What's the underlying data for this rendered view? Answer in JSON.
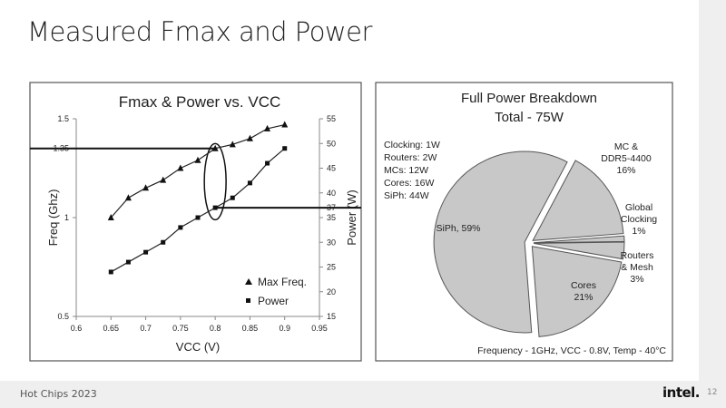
{
  "slide": {
    "title": "Measured Fmax and Power",
    "footer": "Hot Chips 2023",
    "logo": "intel.",
    "page": "12"
  },
  "chart_data": [
    {
      "type": "line",
      "title": "Fmax & Power vs. VCC",
      "xlabel": "VCC (V)",
      "ylabel": "Freq (Ghz)",
      "y2label": "Power (W)",
      "xlim": [
        0.6,
        0.95
      ],
      "ylim": [
        0.5,
        1.5
      ],
      "y2lim": [
        15,
        55
      ],
      "xticks": [
        "0.6",
        "0.65",
        "0.7",
        "0.75",
        "0.8",
        "0.85",
        "0.9",
        "0.95"
      ],
      "yticks": [
        "0.5",
        "1",
        "1.35",
        "1.5"
      ],
      "y2ticks": [
        "15",
        "20",
        "25",
        "30",
        "35",
        "37",
        "40",
        "45",
        "50",
        "55"
      ],
      "x": [
        0.65,
        0.675,
        0.7,
        0.725,
        0.75,
        0.775,
        0.8,
        0.825,
        0.85,
        0.875,
        0.9
      ],
      "series": [
        {
          "name": "Max Freq.",
          "axis": "left",
          "marker": "triangle",
          "values": [
            1.0,
            1.1,
            1.15,
            1.19,
            1.25,
            1.29,
            1.35,
            1.37,
            1.4,
            1.45,
            1.47
          ]
        },
        {
          "name": "Power",
          "axis": "right",
          "marker": "square",
          "values": [
            24,
            26,
            28,
            30,
            33,
            35,
            37,
            39,
            42,
            46,
            49
          ]
        }
      ],
      "annotations": {
        "freq_ref": 1.35,
        "power_ref": 37,
        "highlight_vcc": 0.8
      },
      "legend": "bottom-right",
      "grid": false
    },
    {
      "type": "pie",
      "title": "Full Power Breakdown",
      "subtitle": "Total - 75W",
      "slices": [
        {
          "label": "MC & DDR5-4400",
          "pct": "16%",
          "value": 16,
          "lines": [
            "MC &",
            "DDR5-4400",
            "16%"
          ]
        },
        {
          "label": "Global Clocking",
          "pct": "1%",
          "value": 1,
          "lines": [
            "Global",
            "Clocking",
            "1%"
          ]
        },
        {
          "label": "Routers & Mesh",
          "pct": "3%",
          "value": 3,
          "lines": [
            "Routers",
            "& Mesh",
            "3%"
          ]
        },
        {
          "label": "Cores",
          "pct": "21%",
          "value": 21,
          "lines": [
            "Cores",
            "21%"
          ]
        },
        {
          "label": "SiPh",
          "pct": "59%",
          "value": 59,
          "lines": [
            "SiPh, 59%"
          ]
        }
      ],
      "note_lines": [
        "Clocking: 1W",
        "Routers: 2W",
        "MCs: 12W",
        "Cores: 16W",
        "SiPh: 44W"
      ],
      "footnote": "Frequency - 1GHz, VCC - 0.8V, Temp - 40°C",
      "slice_color": "#c8c8c8"
    }
  ]
}
